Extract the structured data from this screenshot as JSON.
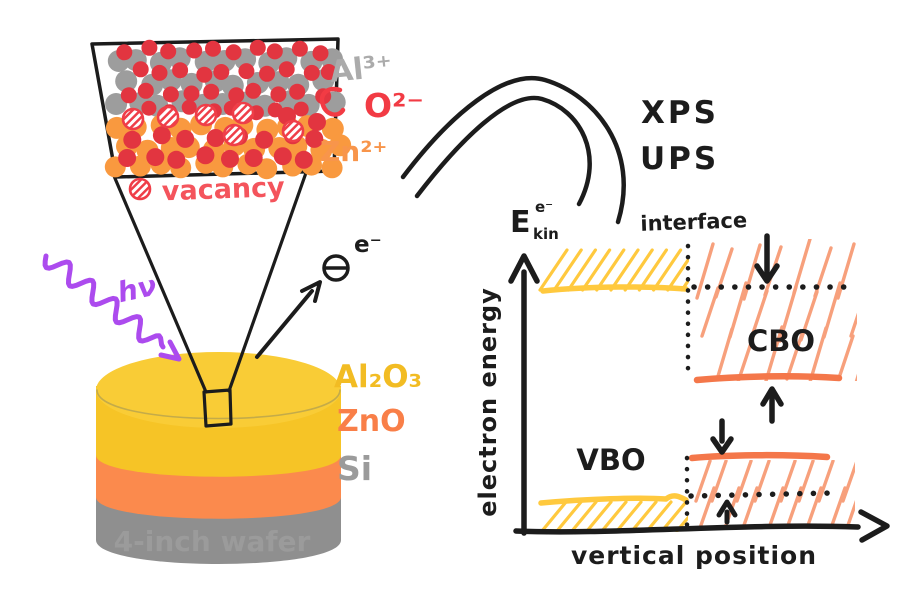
{
  "palette": {
    "black": "#1c1c1c",
    "atom_gray": "#9d9d9d",
    "atom_red": "#e23540",
    "atom_orange": "#f9993f",
    "vac_red": "#ef3e48",
    "legend_red": "#f4545c",
    "ion_gray": "#ababab",
    "ion_red": "#f23b44",
    "ion_orange": "#f8954b",
    "purple": "#ac4bee",
    "wafer_yellow": "#f6c426",
    "wafer_yellow_top": "#f9cc36",
    "wafer_orange": "#fb8a4d",
    "wafer_gray": "#8f8f8f",
    "label_yellow": "#f2bc23",
    "label_orange": "#f97f48",
    "label_gray": "#9b9b9b",
    "band_yellow": "#ffc93e",
    "band_orange": "#f4774a",
    "salmon": "#f7a07c"
  },
  "inset": {
    "ion_al": "Al³⁺",
    "ion_o": "O²⁻",
    "ion_zn": "Zn²⁺",
    "vacancy_label": "vacancy"
  },
  "wafer": {
    "layer_top": "Al₂O₃",
    "layer_mid": "ZnO",
    "layer_bottom": "Si",
    "caption": "4-inch wafer"
  },
  "excitation": {
    "photon_label": "hν",
    "electron_label": "e⁻"
  },
  "analyzer": {
    "xps": "XPS",
    "ups": "UPS",
    "ekin_base": "E",
    "ekin_sub": "kin",
    "ekin_sup": "e⁻"
  },
  "band": {
    "interface": "interface",
    "cbo": "CBO",
    "vbo": "VBO",
    "y_axis": "electron energy",
    "x_axis": "vertical position"
  }
}
